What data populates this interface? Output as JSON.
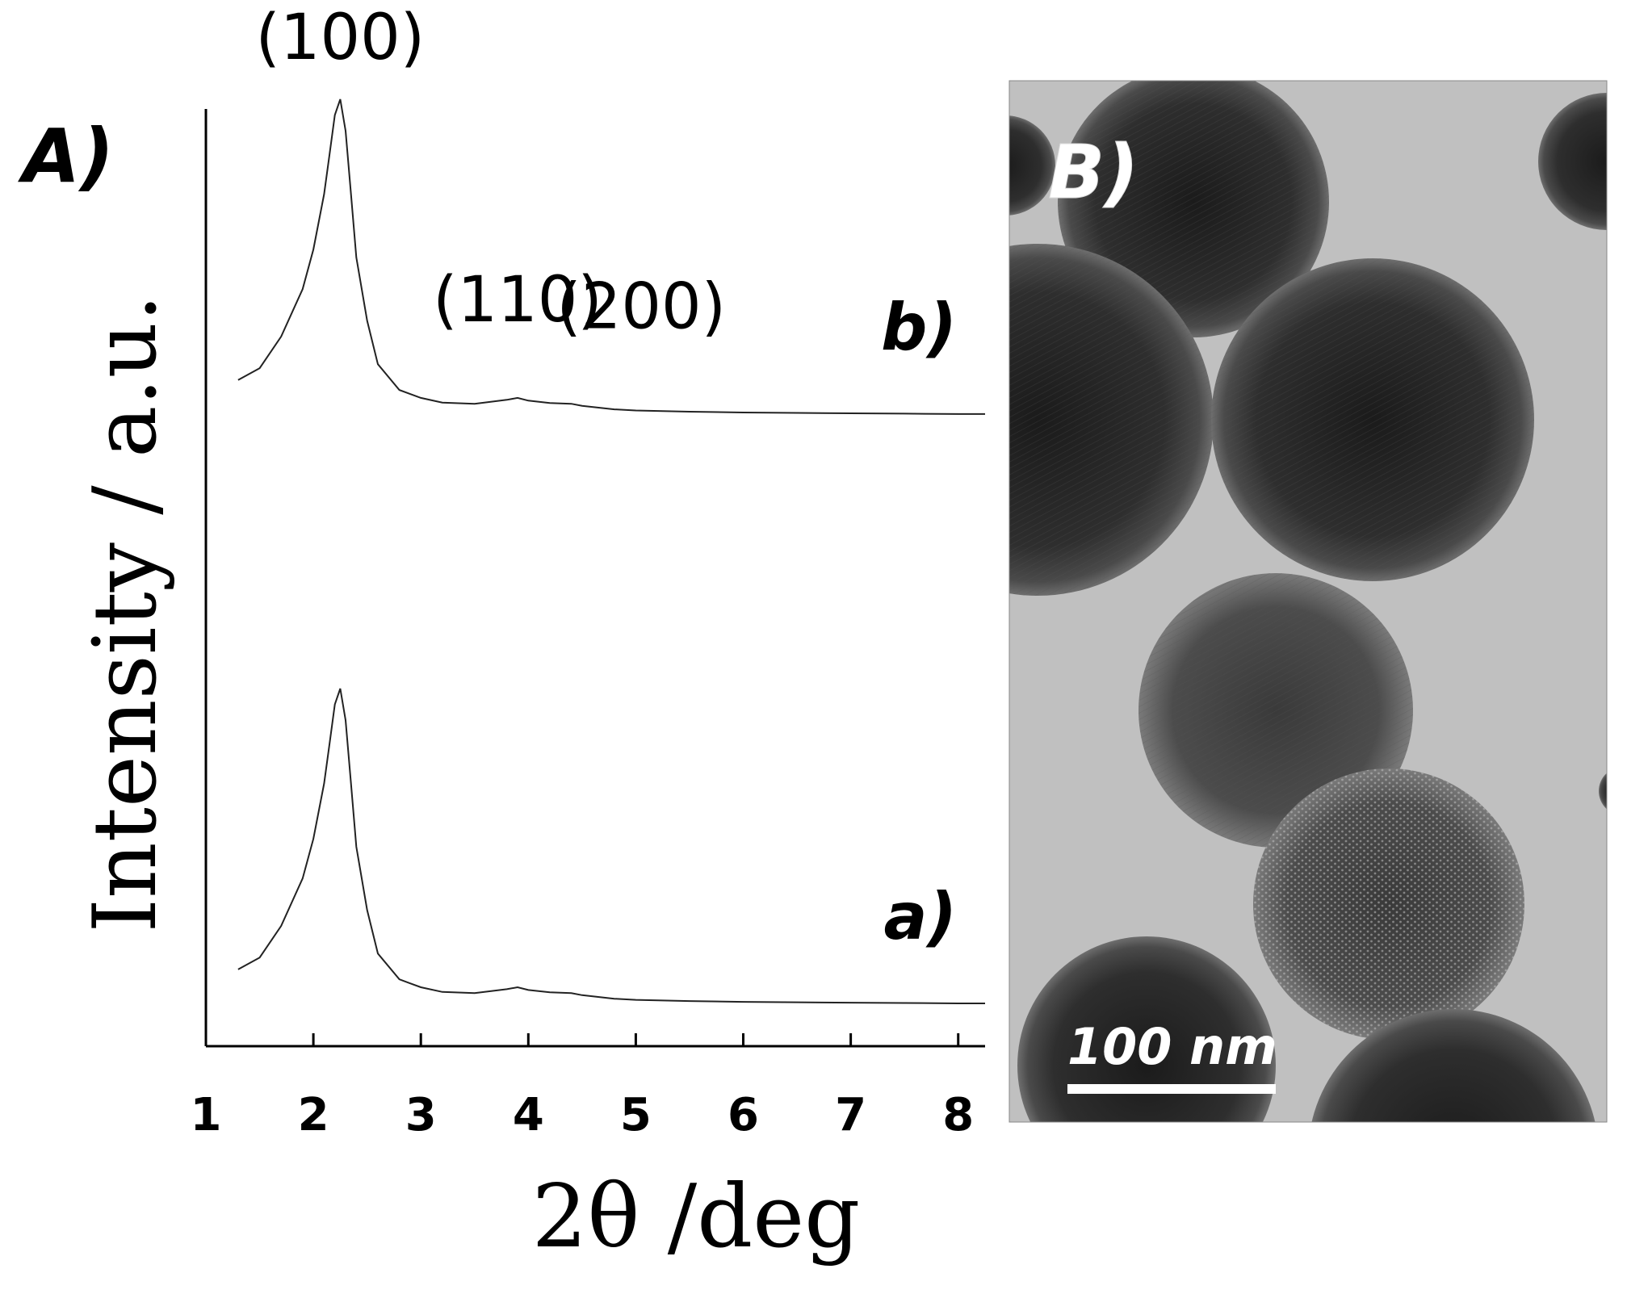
{
  "panel_a_label": "A)",
  "panel_b_label": "B)",
  "chart_data": {
    "type": "line",
    "title": "",
    "xlabel": "2θ /deg",
    "ylabel": "Intensity  / a.u.",
    "xlim": [
      1,
      8.25
    ],
    "ylim": [
      0,
      1
    ],
    "y_ticks_shown": false,
    "grid": false,
    "x_ticks": [
      "1",
      "2",
      "3",
      "4",
      "5",
      "6",
      "7",
      "8"
    ],
    "peak_labels": [
      {
        "text": "(100)",
        "x": 2.25
      },
      {
        "text": "(110)",
        "x": 3.9
      },
      {
        "text": "(200)",
        "x": 4.45
      }
    ],
    "series": [
      {
        "name": "a)",
        "x": [
          1.3,
          1.5,
          1.7,
          1.9,
          2.0,
          2.1,
          2.15,
          2.2,
          2.25,
          2.3,
          2.35,
          2.4,
          2.5,
          2.6,
          2.8,
          3.0,
          3.2,
          3.5,
          3.8,
          3.9,
          4.0,
          4.2,
          4.4,
          4.5,
          4.8,
          5.0,
          5.5,
          6.0,
          6.5,
          7.0,
          7.5,
          8.0,
          8.25
        ],
        "y": [
          0.09,
          0.12,
          0.2,
          0.32,
          0.42,
          0.56,
          0.66,
          0.76,
          0.8,
          0.72,
          0.56,
          0.4,
          0.24,
          0.13,
          0.065,
          0.045,
          0.033,
          0.03,
          0.04,
          0.045,
          0.038,
          0.032,
          0.03,
          0.025,
          0.016,
          0.013,
          0.01,
          0.008,
          0.007,
          0.006,
          0.005,
          0.004,
          0.004
        ]
      },
      {
        "name": "b)",
        "x": [
          1.3,
          1.5,
          1.7,
          1.9,
          2.0,
          2.1,
          2.15,
          2.2,
          2.25,
          2.3,
          2.35,
          2.4,
          2.5,
          2.6,
          2.8,
          3.0,
          3.2,
          3.5,
          3.8,
          3.9,
          4.0,
          4.2,
          4.4,
          4.5,
          4.8,
          5.0,
          5.5,
          6.0,
          6.5,
          7.0,
          7.5,
          8.0,
          8.25
        ],
        "y": [
          1.58,
          1.61,
          1.69,
          1.81,
          1.91,
          2.05,
          2.15,
          2.25,
          2.29,
          2.21,
          2.05,
          1.89,
          1.73,
          1.62,
          1.555,
          1.535,
          1.523,
          1.52,
          1.53,
          1.535,
          1.528,
          1.522,
          1.52,
          1.515,
          1.506,
          1.503,
          1.5,
          1.498,
          1.497,
          1.496,
          1.495,
          1.494,
          1.494
        ]
      }
    ]
  },
  "micrograph": {
    "scale_bar_label": "100 nm",
    "scale_bar_nm": 100
  }
}
